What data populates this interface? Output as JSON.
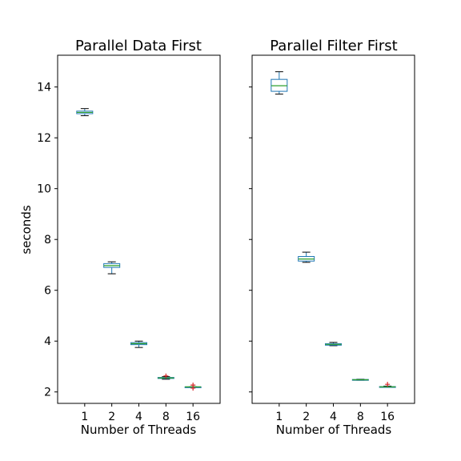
{
  "chart_data": [
    {
      "type": "box",
      "title": "Parallel Data First",
      "xlabel": "Number of Threads",
      "ylabel": "seconds",
      "categories": [
        "1",
        "2",
        "4",
        "8",
        "16"
      ],
      "ylim": [
        1.55,
        15.25
      ],
      "yticks": [
        2,
        4,
        6,
        8,
        10,
        12,
        14
      ],
      "boxes": [
        {
          "category": "1",
          "whislo": 12.87,
          "q1": 12.95,
          "med": 13.0,
          "q3": 13.05,
          "whishi": 13.15,
          "fliers": []
        },
        {
          "category": "2",
          "whislo": 6.65,
          "q1": 6.9,
          "med": 6.97,
          "q3": 7.05,
          "whishi": 7.12,
          "fliers": []
        },
        {
          "category": "4",
          "whislo": 3.75,
          "q1": 3.86,
          "med": 3.9,
          "q3": 3.94,
          "whishi": 4.0,
          "fliers": []
        },
        {
          "category": "8",
          "whislo": 2.5,
          "q1": 2.53,
          "med": 2.55,
          "q3": 2.57,
          "whishi": 2.6,
          "fliers": [
            2.63
          ]
        },
        {
          "category": "16",
          "whislo": 2.2,
          "q1": 2.2,
          "med": 2.2,
          "q3": 2.2,
          "whishi": 2.2,
          "fliers": [
            2.15,
            2.27
          ]
        }
      ]
    },
    {
      "type": "box",
      "title": "Parallel Filter First",
      "xlabel": "Number of Threads",
      "ylabel": "",
      "categories": [
        "1",
        "2",
        "4",
        "8",
        "16"
      ],
      "ylim": [
        1.55,
        15.25
      ],
      "yticks": [
        2,
        4,
        6,
        8,
        10,
        12,
        14
      ],
      "boxes": [
        {
          "category": "1",
          "whislo": 13.72,
          "q1": 13.83,
          "med": 14.05,
          "q3": 14.3,
          "whishi": 14.6,
          "fliers": []
        },
        {
          "category": "2",
          "whislo": 7.1,
          "q1": 7.15,
          "med": 7.23,
          "q3": 7.33,
          "whishi": 7.5,
          "fliers": []
        },
        {
          "category": "4",
          "whislo": 3.82,
          "q1": 3.84,
          "med": 3.87,
          "q3": 3.9,
          "whishi": 3.95,
          "fliers": []
        },
        {
          "category": "8",
          "whislo": 2.46,
          "q1": 2.47,
          "med": 2.48,
          "q3": 2.49,
          "whishi": 2.5,
          "fliers": []
        },
        {
          "category": "16",
          "whislo": 2.18,
          "q1": 2.19,
          "med": 2.2,
          "q3": 2.21,
          "whishi": 2.23,
          "fliers": [
            2.3
          ]
        }
      ]
    }
  ]
}
